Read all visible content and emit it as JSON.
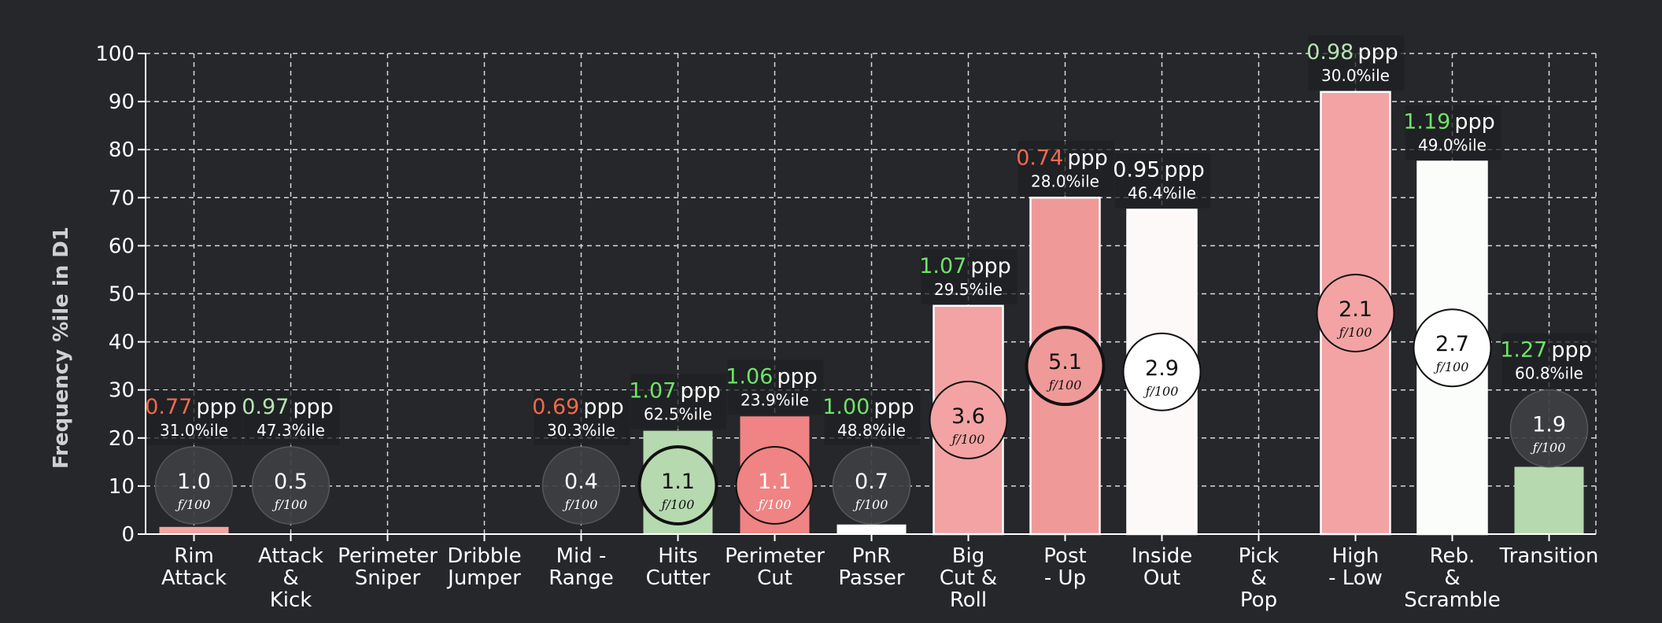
{
  "chart_data": {
    "type": "bar",
    "title": "",
    "xlabel": "",
    "ylabel": "Frequency %ile in D1",
    "ylim": [
      0,
      100
    ],
    "yticks": [
      0,
      10,
      20,
      30,
      40,
      50,
      60,
      70,
      80,
      90,
      100
    ],
    "grid": true,
    "ppp_unit": "ppp",
    "freq_unit": "ƒ/100",
    "categories": [
      {
        "label": [
          "Rim",
          "Attack"
        ],
        "value": 1.5,
        "ppp": "0.77",
        "ppp_color": "#f0694c",
        "pctile": "31.0%ile",
        "freq": "1.0",
        "bar_color": "#f3a3a3",
        "bubble_fill": "#3d3f43",
        "bubble_text": "#ffffff",
        "bubble_bold": false
      },
      {
        "label": [
          "Attack",
          "&",
          "Kick"
        ],
        "value": 0,
        "ppp": "0.97",
        "ppp_color": "#b7e3b3",
        "pctile": "47.3%ile",
        "freq": "0.5",
        "bar_color": "#ffffff",
        "bubble_fill": "#3d3f43",
        "bubble_text": "#ffffff",
        "bubble_bold": false
      },
      {
        "label": [
          "Perimeter",
          "Sniper"
        ],
        "value": null,
        "ppp": null,
        "ppp_color": null,
        "pctile": null,
        "freq": null,
        "bar_color": null,
        "bubble_fill": null,
        "bubble_text": null,
        "bubble_bold": false
      },
      {
        "label": [
          "Dribble",
          "Jumper"
        ],
        "value": null,
        "ppp": null,
        "ppp_color": null,
        "pctile": null,
        "freq": null,
        "bar_color": null,
        "bubble_fill": null,
        "bubble_text": null,
        "bubble_bold": false
      },
      {
        "label": [
          "Mid -",
          "Range"
        ],
        "value": 0,
        "ppp": "0.69",
        "ppp_color": "#f0694c",
        "pctile": "30.3%ile",
        "freq": "0.4",
        "bar_color": "#f3a3a3",
        "bubble_fill": "#3d3f43",
        "bubble_text": "#ffffff",
        "bubble_bold": false
      },
      {
        "label": [
          "Hits",
          "Cutter"
        ],
        "value": 21.5,
        "ppp": "1.07",
        "ppp_color": "#6fe36a",
        "pctile": "62.5%ile",
        "freq": "1.1",
        "bar_color": "#b6d9b0",
        "bubble_fill": "#b6d9b0",
        "bubble_text": "#111111",
        "bubble_bold": true
      },
      {
        "label": [
          "Perimeter",
          "Cut"
        ],
        "value": 24.5,
        "ppp": "1.06",
        "ppp_color": "#6fe36a",
        "pctile": "23.9%ile",
        "freq": "1.1",
        "bar_color": "#f08383",
        "bubble_fill": "#f08383",
        "bubble_text": "#ffffff",
        "bubble_bold": false
      },
      {
        "label": [
          "PnR",
          "Passer"
        ],
        "value": 2,
        "ppp": "1.00",
        "ppp_color": "#6fe36a",
        "pctile": "48.8%ile",
        "freq": "0.7",
        "bar_color": "#ffffff",
        "bubble_fill": "#3d3f43",
        "bubble_text": "#ffffff",
        "bubble_bold": false
      },
      {
        "label": [
          "Big",
          "Cut &",
          "Roll"
        ],
        "value": 47.5,
        "ppp": "1.07",
        "ppp_color": "#6fe36a",
        "pctile": "29.5%ile",
        "freq": "3.6",
        "bar_color": "#f3a3a3",
        "bubble_fill": "#f3a3a3",
        "bubble_text": "#111111",
        "bubble_bold": false
      },
      {
        "label": [
          "Post",
          "- Up"
        ],
        "value": 70,
        "ppp": "0.74",
        "ppp_color": "#f0694c",
        "pctile": "28.0%ile",
        "freq": "5.1",
        "bar_color": "#f09999",
        "bubble_fill": "#f09999",
        "bubble_text": "#111111",
        "bubble_bold": true
      },
      {
        "label": [
          "Inside",
          "Out"
        ],
        "value": 67.5,
        "ppp": "0.95",
        "ppp_color": "#ffffff",
        "pctile": "46.4%ile",
        "freq": "2.9",
        "bar_color": "#fdf9f8",
        "bubble_fill": "#ffffff",
        "bubble_text": "#111111",
        "bubble_bold": false
      },
      {
        "label": [
          "Pick",
          "&",
          "Pop"
        ],
        "value": null,
        "ppp": null,
        "ppp_color": null,
        "pctile": null,
        "freq": null,
        "bar_color": null,
        "bubble_fill": null,
        "bubble_text": null,
        "bubble_bold": false
      },
      {
        "label": [
          "High",
          "- Low"
        ],
        "value": 92,
        "ppp": "0.98",
        "ppp_color": "#b7e3b3",
        "pctile": "30.0%ile",
        "freq": "2.1",
        "bar_color": "#f3a3a3",
        "bubble_fill": "#f3a3a3",
        "bubble_text": "#111111",
        "bubble_bold": false
      },
      {
        "label": [
          "Reb.",
          "&",
          "Scramble"
        ],
        "value": 77.5,
        "ppp": "1.19",
        "ppp_color": "#6fe36a",
        "pctile": "49.0%ile",
        "freq": "2.7",
        "bar_color": "#fbfdfa",
        "bubble_fill": "#ffffff",
        "bubble_text": "#111111",
        "bubble_bold": false
      },
      {
        "label": [
          "Transition"
        ],
        "value": 14,
        "ppp": "1.27",
        "ppp_color": "#6fe36a",
        "pctile": "60.8%ile",
        "freq": "1.9",
        "bar_color": "#b6d9b0",
        "bubble_fill": "#3d3f43",
        "bubble_text": "#ffffff",
        "bubble_bold": false
      }
    ]
  }
}
